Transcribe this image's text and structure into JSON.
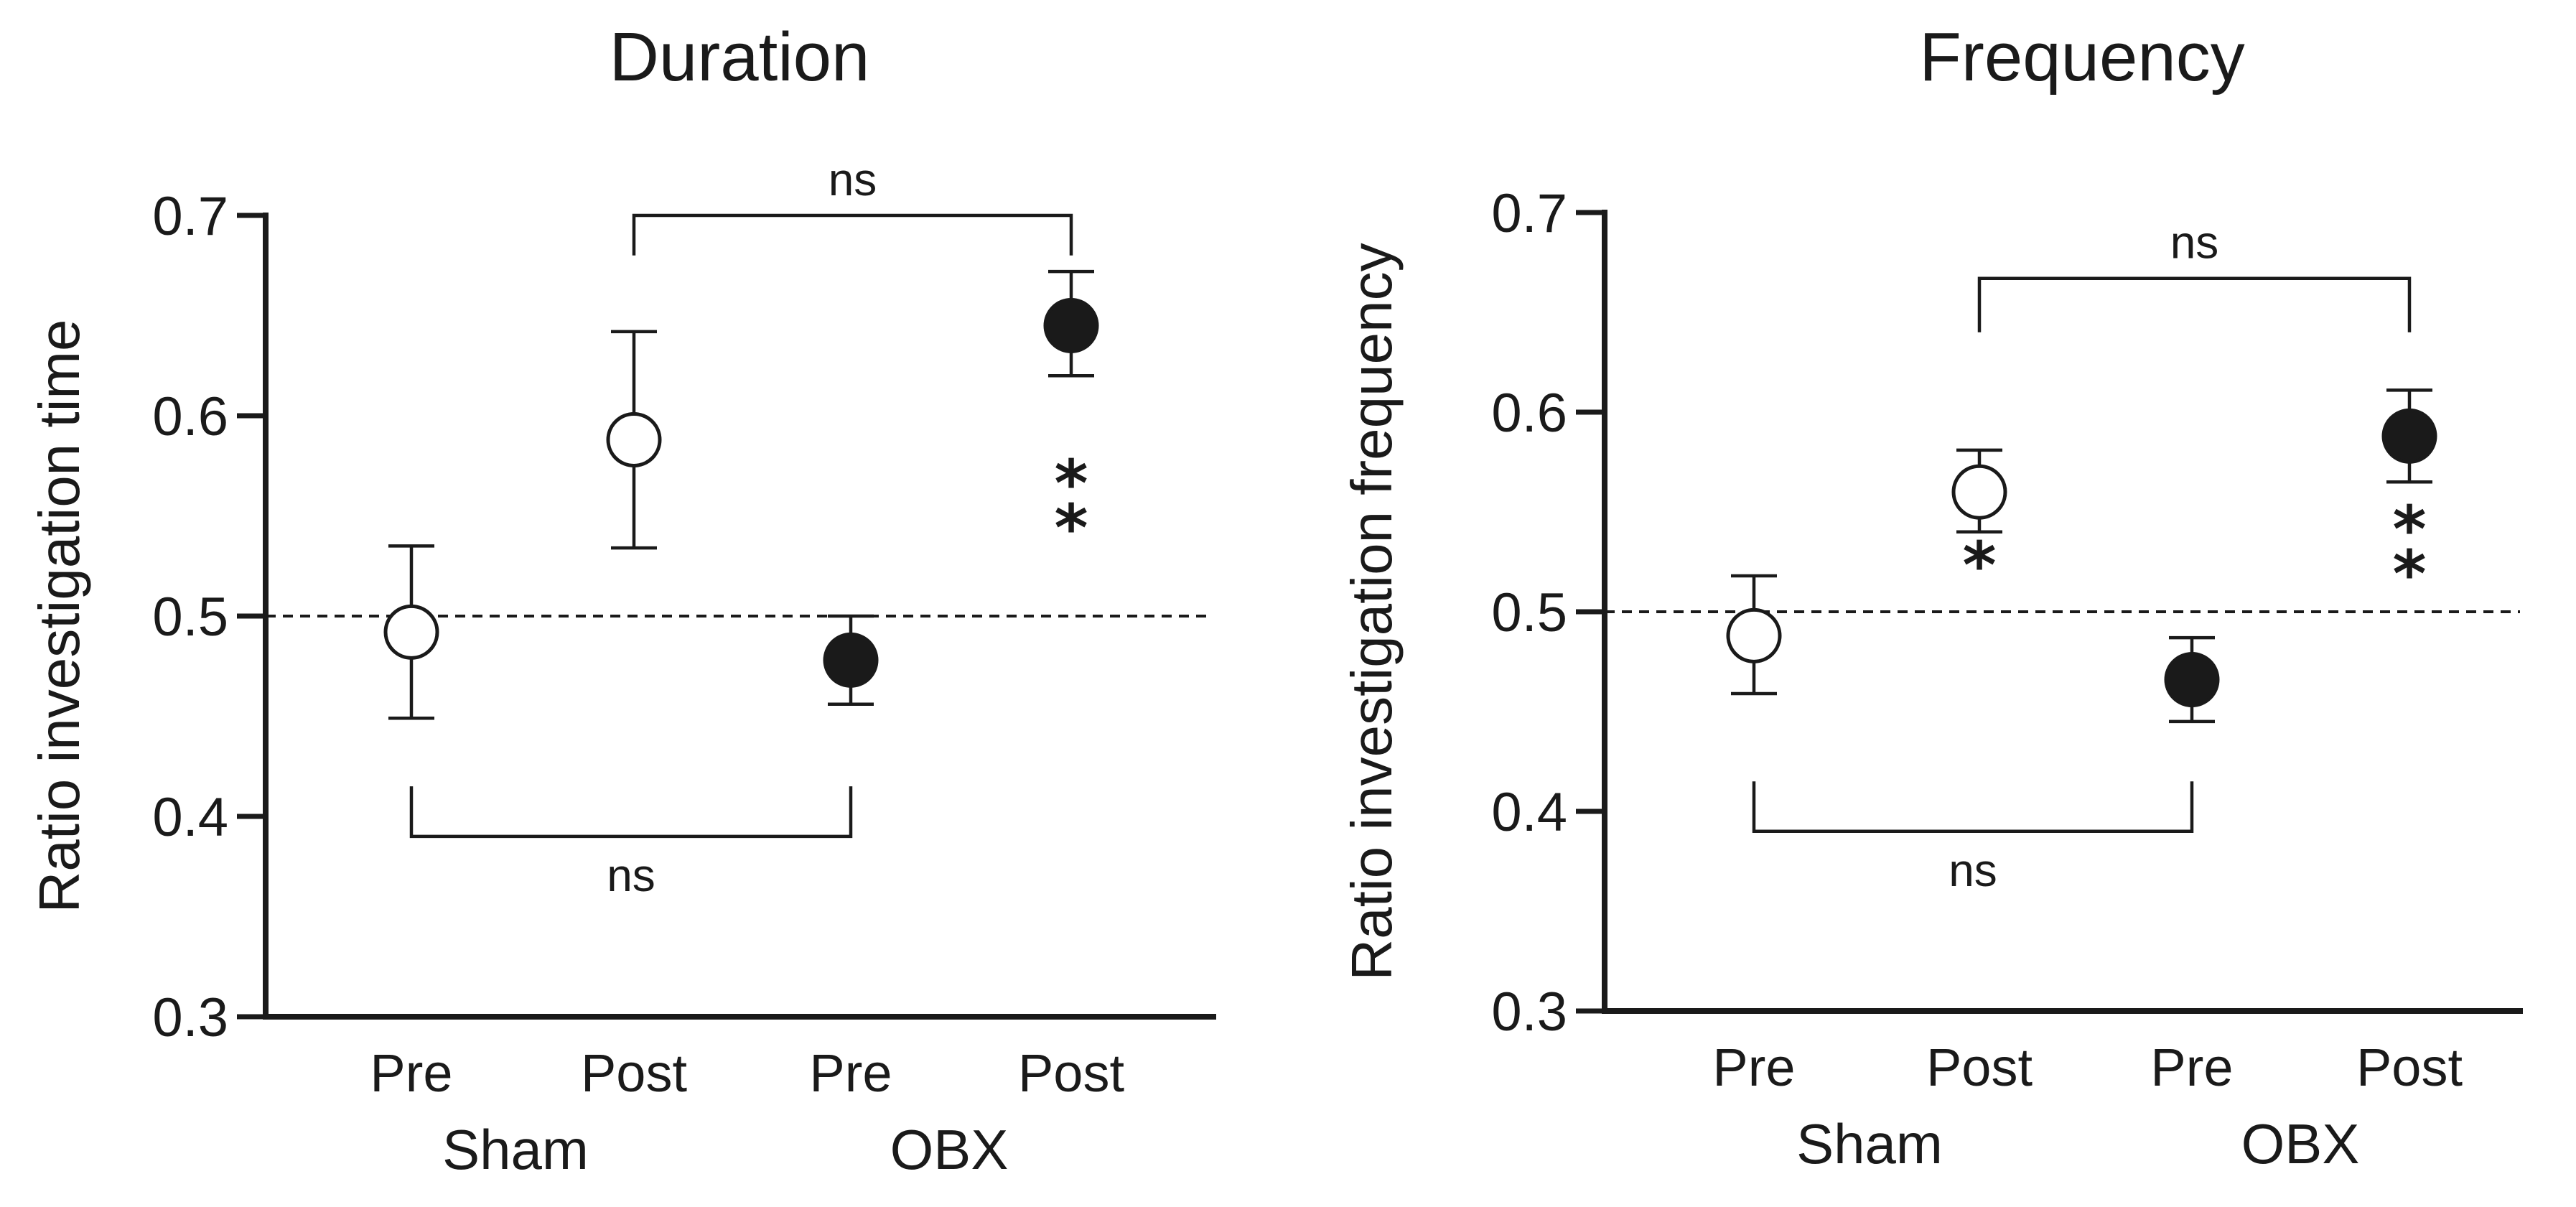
{
  "chart_data": [
    {
      "type": "scatter",
      "title": "Duration",
      "ylabel": "Ratio investigation time",
      "xlabel": "",
      "ylim": [
        0.3,
        0.7
      ],
      "yticks": [
        "0.3",
        "0.4",
        "0.5",
        "0.6",
        "0.7"
      ],
      "reference_line": 0.5,
      "categories": [
        "Pre",
        "Post",
        "Pre",
        "Post"
      ],
      "groups": [
        {
          "name": "Sham",
          "category_indices": [
            0,
            1
          ]
        },
        {
          "name": "OBX",
          "category_indices": [
            2,
            3
          ]
        }
      ],
      "series": [
        {
          "name": "Sham",
          "marker": "open-circle",
          "points": [
            {
              "category": 0,
              "mean": 0.492,
              "err_low": 0.449,
              "err_high": 0.535
            },
            {
              "category": 1,
              "mean": 0.588,
              "err_low": 0.534,
              "err_high": 0.642
            }
          ]
        },
        {
          "name": "OBX",
          "marker": "filled-circle",
          "points": [
            {
              "category": 2,
              "mean": 0.478,
              "err_low": 0.456,
              "err_high": 0.5
            },
            {
              "category": 3,
              "mean": 0.645,
              "err_low": 0.62,
              "err_high": 0.672
            }
          ]
        }
      ],
      "significance": [
        {
          "category": 3,
          "label": "**",
          "y": 0.555
        }
      ],
      "brackets": [
        {
          "from": 1,
          "to": 3,
          "y": 0.7,
          "tick_to_y": 0.68,
          "label": "ns",
          "side": "above"
        },
        {
          "from": 0,
          "to": 2,
          "y": 0.39,
          "tick_to_y": 0.415,
          "label": "ns",
          "side": "below"
        }
      ]
    },
    {
      "type": "scatter",
      "title": "Frequency",
      "ylabel": "Ratio investigation frequency",
      "xlabel": "",
      "ylim": [
        0.3,
        0.7
      ],
      "yticks": [
        "0.3",
        "0.4",
        "0.5",
        "0.6",
        "0.7"
      ],
      "reference_line": 0.5,
      "categories": [
        "Pre",
        "Post",
        "Pre",
        "Post"
      ],
      "groups": [
        {
          "name": "Sham",
          "category_indices": [
            0,
            1
          ]
        },
        {
          "name": "OBX",
          "category_indices": [
            2,
            3
          ]
        }
      ],
      "series": [
        {
          "name": "Sham",
          "marker": "open-circle",
          "points": [
            {
              "category": 0,
              "mean": 0.488,
              "err_low": 0.459,
              "err_high": 0.518
            },
            {
              "category": 1,
              "mean": 0.56,
              "err_low": 0.54,
              "err_high": 0.581
            }
          ]
        },
        {
          "name": "OBX",
          "marker": "filled-circle",
          "points": [
            {
              "category": 2,
              "mean": 0.466,
              "err_low": 0.445,
              "err_high": 0.487
            },
            {
              "category": 3,
              "mean": 0.588,
              "err_low": 0.565,
              "err_high": 0.611
            }
          ]
        }
      ],
      "significance": [
        {
          "category": 1,
          "label": "*",
          "y": 0.512
        },
        {
          "category": 3,
          "label": "**",
          "y": 0.53
        }
      ],
      "brackets": [
        {
          "from": 1,
          "to": 3,
          "y": 0.667,
          "tick_to_y": 0.64,
          "label": "ns",
          "side": "above"
        },
        {
          "from": 0,
          "to": 2,
          "y": 0.39,
          "tick_to_y": 0.415,
          "label": "ns",
          "side": "below"
        }
      ]
    }
  ]
}
